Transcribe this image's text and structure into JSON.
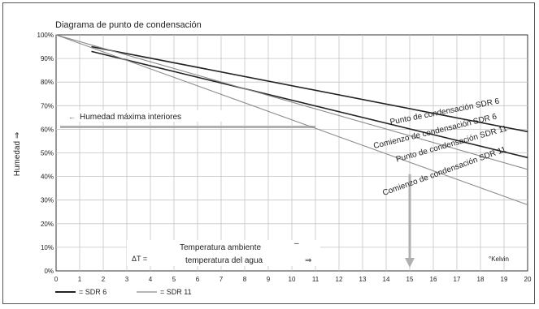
{
  "chart_data": {
    "type": "line",
    "title": "Diagrama de punto de condensación",
    "ylabel": "Humedad ⇒",
    "x_unit_label": "°Kelvin",
    "xlim": [
      0,
      20
    ],
    "ylim": [
      0,
      100
    ],
    "grid": true,
    "x_ticks": [
      "0",
      "1",
      "2",
      "3",
      "4",
      "5",
      "6",
      "7",
      "8",
      "9",
      "10",
      "11",
      "12",
      "13",
      "14",
      "15",
      "16",
      "17",
      "18",
      "19",
      "20"
    ],
    "y_ticks": [
      "0%",
      "10%",
      "20%",
      "30%",
      "40%",
      "50%",
      "60%",
      "70%",
      "80%",
      "90%",
      "100%"
    ],
    "series": [
      {
        "name": "Punto de condensación SDR 6",
        "style": "sdr6",
        "x": [
          1.5,
          20
        ],
        "y": [
          95,
          59
        ]
      },
      {
        "name": "Comienzo de condensación SDR 6",
        "style": "sdr6",
        "x": [
          1.5,
          20
        ],
        "y": [
          93,
          48
        ]
      },
      {
        "name": "Punto de condensación SDR 11",
        "style": "sdr11",
        "x": [
          0,
          20
        ],
        "y": [
          100,
          43
        ]
      },
      {
        "name": "Comienzo de condensación SDR 11",
        "style": "sdr11",
        "x": [
          0,
          20
        ],
        "y": [
          100,
          28
        ]
      }
    ],
    "annotations": {
      "humidity_label": "Humedad máxima interiores",
      "humidity_level": 61,
      "arrow_x": 15,
      "delta_label": "ΔT =",
      "temp_line1": "Temperatura ambiente",
      "temp_minus": "–",
      "temp_line2": "temperatura del agua",
      "temp_arrow": "⇒"
    },
    "legend": {
      "placement": "bottom-left",
      "items": [
        {
          "label": "= SDR 6",
          "style": "sdr6"
        },
        {
          "label": "= SDR 11",
          "style": "sdr11"
        }
      ]
    },
    "colors": {
      "sdr6": "#222222",
      "sdr11": "#8a8a8a",
      "grid": "#c4c4c4",
      "highlight": "#b0b0b0"
    }
  }
}
